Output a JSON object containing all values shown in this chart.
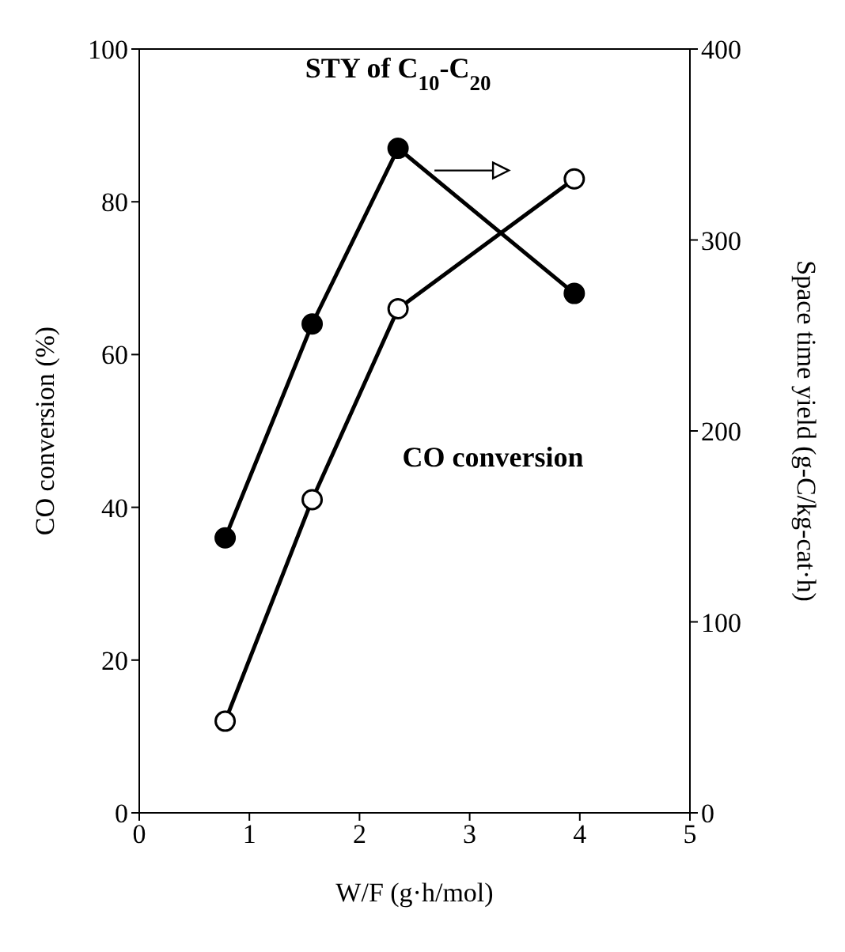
{
  "chart_data": {
    "type": "line",
    "xlabel": "W/F (g·h/mol)",
    "ylabel": "CO conversion (%)",
    "y2label": "Space time yield (g-C/kg-cat·h)",
    "x": [
      0.78,
      1.57,
      2.35,
      3.95
    ],
    "series": [
      {
        "name": "CO conversion",
        "color": "#000000",
        "values": [
          12,
          41,
          66,
          83
        ]
      },
      {
        "name": "STY of C$_{10}$-C$_{20}$",
        "color": "#000000",
        "values": [
          144,
          256,
          348,
          272
        ],
        "axis": "y2"
      }
    ],
    "xlim": [
      0,
      5
    ],
    "xticks": [
      0,
      1,
      2,
      3,
      4,
      5
    ],
    "ylim": [
      0,
      100
    ],
    "yticks": [
      0,
      20,
      40,
      60,
      80,
      100
    ],
    "y2lim": [
      0,
      400
    ],
    "y2ticks": [
      0,
      100,
      200,
      300,
      400
    ],
    "marker": "circle",
    "line_style": "solid",
    "legend": false,
    "grid": false
  }
}
